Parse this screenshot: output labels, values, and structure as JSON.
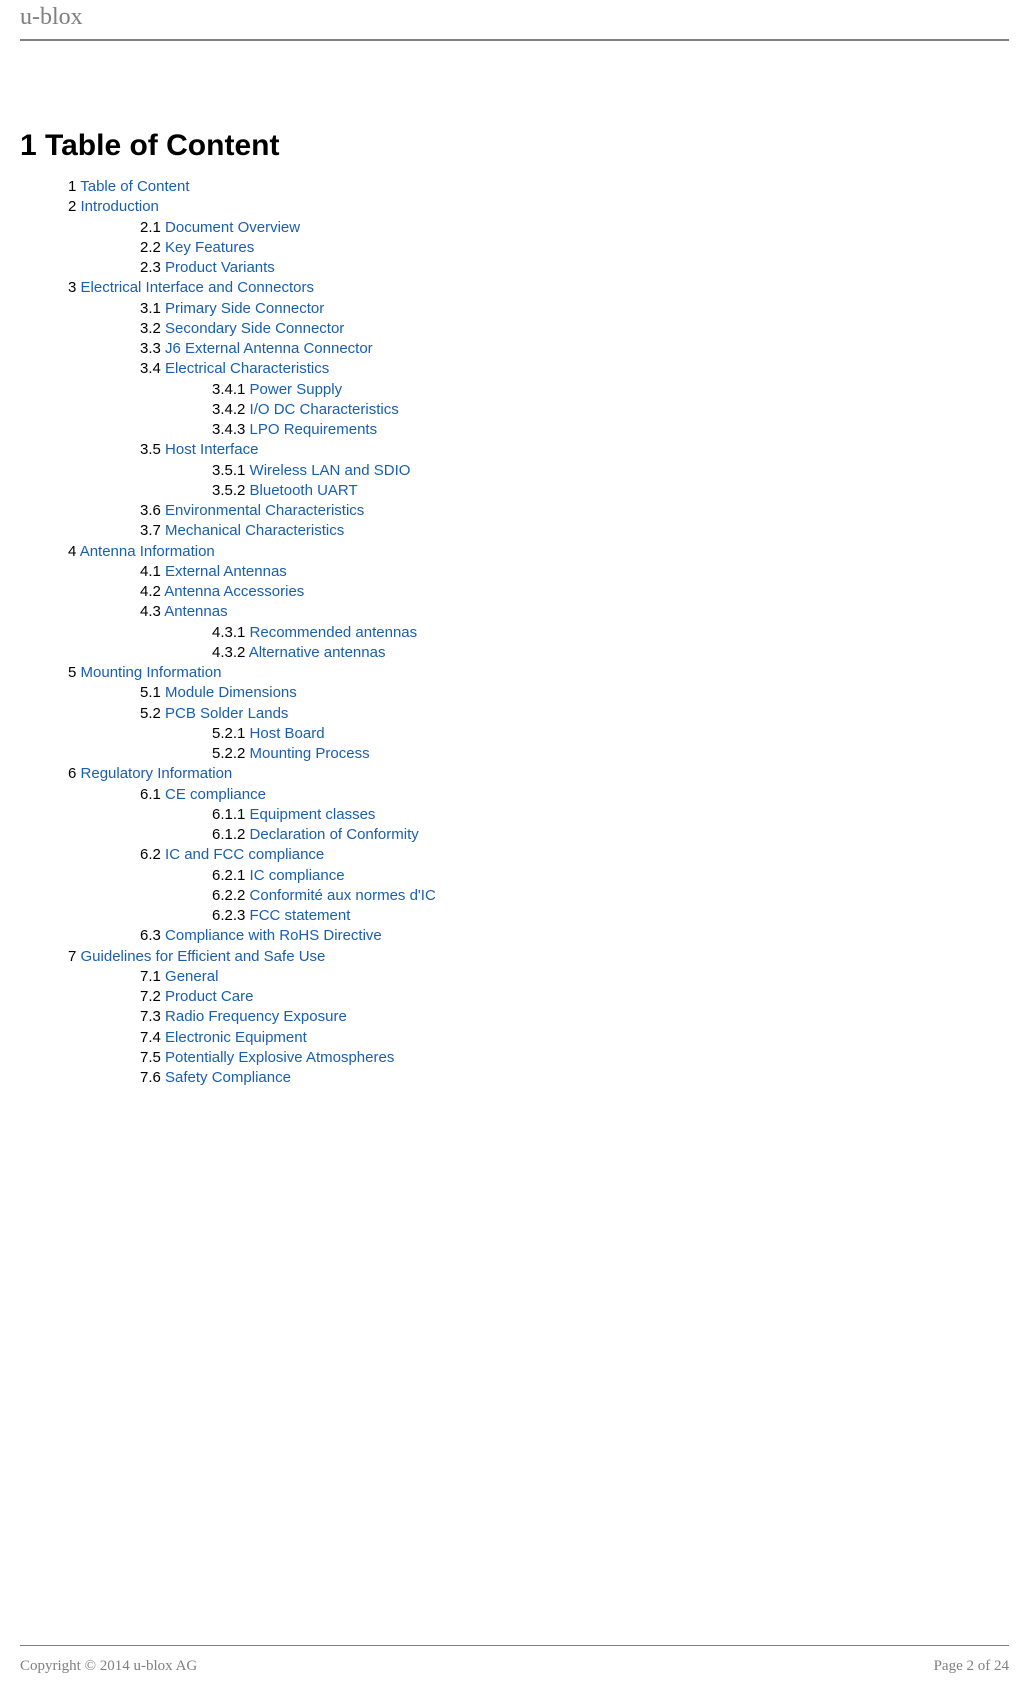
{
  "header": {
    "brand": "u-blox"
  },
  "title": "1 Table of Content",
  "link_color": "#1a5fad",
  "toc": {
    "items": [
      {
        "lvl": 1,
        "num": "1",
        "label": "Table of Content"
      },
      {
        "lvl": 1,
        "num": "2",
        "label": "Introduction"
      },
      {
        "lvl": 2,
        "num": "2.1",
        "label": "Document Overview"
      },
      {
        "lvl": 2,
        "num": "2.2",
        "label": "Key Features"
      },
      {
        "lvl": 2,
        "num": "2.3",
        "label": "Product Variants"
      },
      {
        "lvl": 1,
        "num": "3",
        "label": "Electrical Interface and Connectors"
      },
      {
        "lvl": 2,
        "num": "3.1",
        "label": "Primary Side Connector"
      },
      {
        "lvl": 2,
        "num": "3.2",
        "label": "Secondary Side Connector"
      },
      {
        "lvl": 2,
        "num": "3.3",
        "label": "J6 External Antenna Connector"
      },
      {
        "lvl": 2,
        "num": "3.4",
        "label": "Electrical Characteristics"
      },
      {
        "lvl": 3,
        "num": "3.4.1",
        "label": "Power Supply"
      },
      {
        "lvl": 3,
        "num": "3.4.2",
        "label": "I/O DC Characteristics"
      },
      {
        "lvl": 3,
        "num": "3.4.3",
        "label": "LPO Requirements"
      },
      {
        "lvl": 2,
        "num": "3.5",
        "label": "Host Interface"
      },
      {
        "lvl": 3,
        "num": "3.5.1",
        "label": "Wireless LAN and SDIO"
      },
      {
        "lvl": 3,
        "num": "3.5.2",
        "label": "Bluetooth UART"
      },
      {
        "lvl": 2,
        "num": "3.6",
        "label": "Environmental Characteristics"
      },
      {
        "lvl": 2,
        "num": "3.7",
        "label": "Mechanical Characteristics"
      },
      {
        "lvl": 1,
        "num": "4",
        "label": "Antenna Information"
      },
      {
        "lvl": 2,
        "num": "4.1",
        "label": "External Antennas"
      },
      {
        "lvl": 2,
        "num": "4.2",
        "label": "Antenna Accessories"
      },
      {
        "lvl": 2,
        "num": "4.3",
        "label": "Antennas"
      },
      {
        "lvl": 3,
        "num": "4.3.1",
        "label": "Recommended antennas"
      },
      {
        "lvl": 3,
        "num": "4.3.2",
        "label": "Alternative antennas"
      },
      {
        "lvl": 1,
        "num": "5",
        "label": "Mounting Information"
      },
      {
        "lvl": 2,
        "num": "5.1",
        "label": "Module Dimensions"
      },
      {
        "lvl": 2,
        "num": "5.2",
        "label": "PCB Solder Lands"
      },
      {
        "lvl": 3,
        "num": "5.2.1",
        "label": "Host Board"
      },
      {
        "lvl": 3,
        "num": "5.2.2",
        "label": "Mounting Process"
      },
      {
        "lvl": 1,
        "num": "6",
        "label": "Regulatory Information"
      },
      {
        "lvl": 2,
        "num": "6.1",
        "label": "CE compliance"
      },
      {
        "lvl": 3,
        "num": "6.1.1",
        "label": "Equipment classes"
      },
      {
        "lvl": 3,
        "num": "6.1.2",
        "label": "Declaration of Conformity"
      },
      {
        "lvl": 2,
        "num": "6.2",
        "label": "IC and FCC compliance"
      },
      {
        "lvl": 3,
        "num": "6.2.1",
        "label": "IC compliance"
      },
      {
        "lvl": 3,
        "num": "6.2.2",
        "label": "Conformité aux normes d'IC"
      },
      {
        "lvl": 3,
        "num": "6.2.3",
        "label": "FCC statement"
      },
      {
        "lvl": 2,
        "num": "6.3",
        "label": "Compliance with RoHS Directive"
      },
      {
        "lvl": 1,
        "num": "7",
        "label": "Guidelines for Efficient and Safe Use"
      },
      {
        "lvl": 2,
        "num": "7.1",
        "label": "General"
      },
      {
        "lvl": 2,
        "num": "7.2",
        "label": "Product Care"
      },
      {
        "lvl": 2,
        "num": "7.3",
        "label": "Radio Frequency Exposure"
      },
      {
        "lvl": 2,
        "num": "7.4",
        "label": "Electronic Equipment"
      },
      {
        "lvl": 2,
        "num": "7.5",
        "label": "Potentially Explosive Atmospheres"
      },
      {
        "lvl": 2,
        "num": "7.6",
        "label": "Safety Compliance"
      }
    ]
  },
  "footer": {
    "copyright": "Copyright © 2014 u-blox AG",
    "page": "Page 2 of 24"
  }
}
